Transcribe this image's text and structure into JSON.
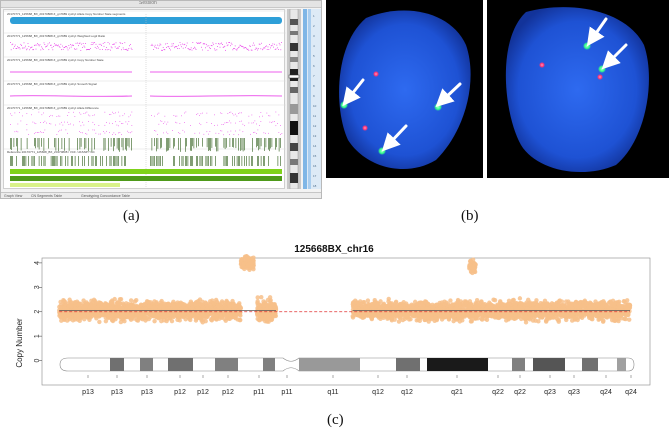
{
  "panel_a": {
    "window_title": "Session",
    "tracks": [
      {
        "label": "20170771_125668_BX_20170808 Z_gn7989 cyt/cyt Allele Copy Number State segments",
        "kind": "segments"
      },
      {
        "label": "20170771_125668_BX_20170808 Z_gn7989 cyt/cyt Weighted Log2 Ratio",
        "kind": "log2"
      },
      {
        "label": "20170771_125668_BX_20170808 Z_gn7989 cyt/cyt Copy Number State",
        "kind": "cn_state"
      },
      {
        "label": "20170771_125668_BX_20170808 Z_gn7989 cyt/cyt Smooth Signal",
        "kind": "smooth"
      },
      {
        "label": "20170771_125668_BX_20170808 Z_gn7989 cyt/cyt Allele Difference",
        "kind": "allele"
      },
      {
        "label": "Reference 20170771_125668_BX_20170808 / VCF / dbSNP / GC",
        "kind": "genes"
      }
    ],
    "status_tabs": [
      "Graph View",
      "CN Segments Table",
      "Genotyping Concordance Table"
    ],
    "colors": {
      "segment_bar": "#2e9fd8",
      "signal": "#e62ae6",
      "gene_dark": "#2f5e1a",
      "gene_bright": "#7fd21a"
    }
  },
  "panel_b": {
    "colors": {
      "nucleus": "#1f56e0",
      "green_signal": "#33ff88",
      "red_signal": "#ff3377",
      "arrow": "#ffffff"
    },
    "left_cell": {
      "green_signals": 3,
      "red_signals": 2,
      "arrows": 3
    },
    "right_cell": {
      "green_signals": 2,
      "red_signals": 2,
      "arrows": 2
    }
  },
  "captions": {
    "a": "(a)",
    "b": "(b)",
    "c": "(c)"
  },
  "chart_data": {
    "type": "scatter",
    "title": "125668BX_chr16",
    "ylabel": "Copy Number",
    "xlabel": "",
    "ylim": [
      -1,
      4.2
    ],
    "yticks": [
      0,
      1,
      2,
      3,
      4
    ],
    "reference_line": 2,
    "point_color": "#f7c08a",
    "mean_line_color": "#555555",
    "reference_line_color": "#e03030",
    "x_range_mb": [
      0,
      90
    ],
    "clusters": [
      {
        "x_start": 0.5,
        "x_end": 29,
        "mean": 2.05,
        "spread": 0.22
      },
      {
        "x_start": 29,
        "x_end": 31,
        "mean": 4.0,
        "spread": 0.15
      },
      {
        "x_start": 31.5,
        "x_end": 34.5,
        "mean": 2.05,
        "spread": 0.25
      },
      {
        "x_start": 46.5,
        "x_end": 90,
        "mean": 2.05,
        "spread": 0.22
      },
      {
        "x_start": 64.8,
        "x_end": 65.8,
        "mean": 3.85,
        "spread": 0.15
      }
    ],
    "band_labels": [
      "p13",
      "p13",
      "p13",
      "p12",
      "p12",
      "p12",
      "p11",
      "p11",
      "q11",
      "q12",
      "q12",
      "q21",
      "q22",
      "q22",
      "q23",
      "q23",
      "q24",
      "q24"
    ],
    "band_label_positions_mb": [
      4.5,
      10.8,
      15.5,
      20.2,
      24.5,
      28.5,
      34.5,
      40.8,
      50,
      57.5,
      64.8,
      71.2,
      77,
      81,
      86,
      89,
      93.5,
      98
    ]
  }
}
